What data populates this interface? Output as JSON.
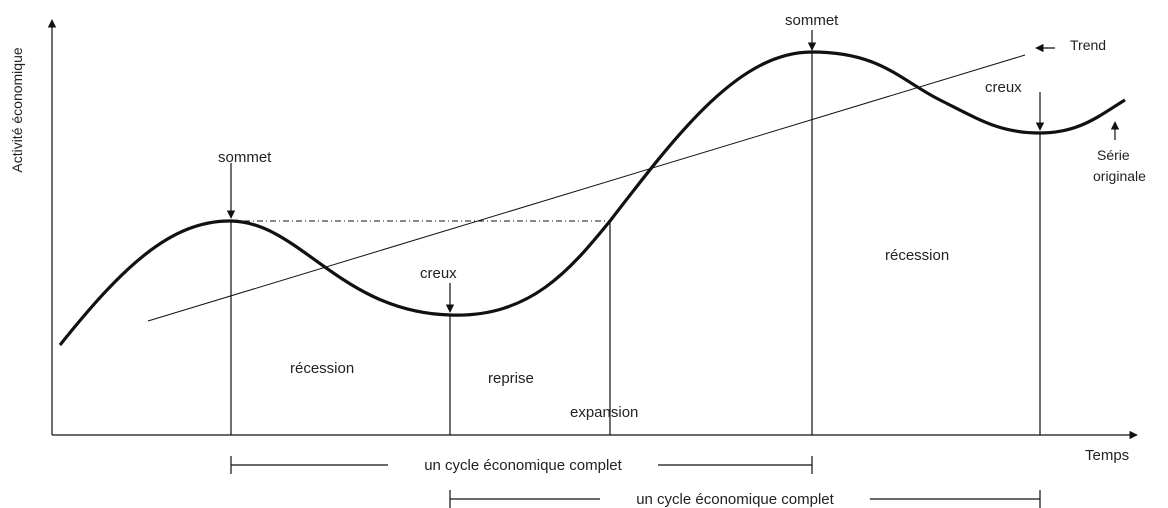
{
  "y_axis_label": "Activité économique",
  "x_axis_label": "Temps",
  "peaks": [
    "sommet",
    "sommet"
  ],
  "troughs": [
    "creux",
    "creux"
  ],
  "trend_label": "Trend",
  "series_label": [
    "Série",
    "originale"
  ],
  "phases": [
    "récession",
    "reprise",
    "expansion",
    "récession"
  ],
  "cycles": [
    "un cycle économique complet",
    "un cycle économique complet"
  ]
}
